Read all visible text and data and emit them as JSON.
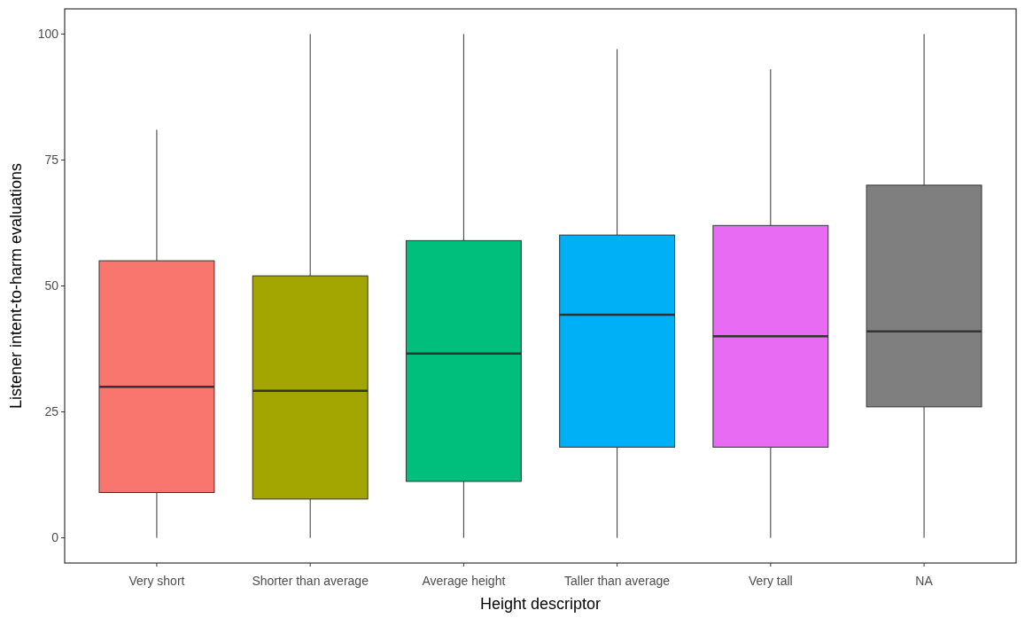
{
  "chart_data": {
    "type": "box",
    "xlabel": "Height descriptor",
    "ylabel": "Listener intent-to-harm evaluations",
    "categories": [
      "Very short",
      "Shorter than average",
      "Average height",
      "Taller than average",
      "Very tall",
      "NA"
    ],
    "colors": [
      "#f8766d",
      "#a3a500",
      "#00bf7d",
      "#00b0f6",
      "#e76bf3",
      "#7f7f7f"
    ],
    "boxes": [
      {
        "low": 0,
        "q1": 9,
        "median": 30,
        "q3": 55,
        "high": 81
      },
      {
        "low": 0,
        "q1": 7.7,
        "median": 29.2,
        "q3": 52,
        "high": 100
      },
      {
        "low": 0,
        "q1": 11.2,
        "median": 36.6,
        "q3": 59,
        "high": 100
      },
      {
        "low": 0,
        "q1": 18,
        "median": 44.3,
        "q3": 60.1,
        "high": 97
      },
      {
        "low": 0,
        "q1": 18,
        "median": 40,
        "q3": 62,
        "high": 93
      },
      {
        "low": 0,
        "q1": 26,
        "median": 41,
        "q3": 70,
        "high": 100
      }
    ],
    "ylim": [
      -5,
      105
    ],
    "yticks": [
      0,
      25,
      50,
      75,
      100
    ],
    "grid": false
  }
}
